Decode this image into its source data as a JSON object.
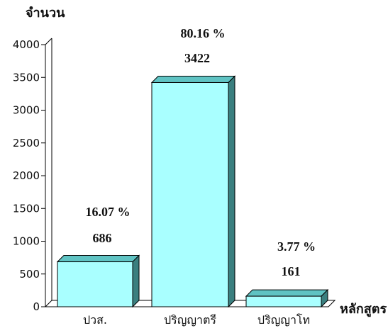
{
  "chart_data": {
    "type": "bar",
    "categories": [
      "ปวส.",
      "ปริญญาตรี",
      "ปริญญาโท"
    ],
    "values": [
      686,
      3422,
      161
    ],
    "value_labels": [
      "686",
      "3422",
      "161"
    ],
    "percent_labels": [
      "16.07 %",
      "80.16 %",
      "3.77 %"
    ],
    "title": "",
    "xlabel": "หลักสูตร",
    "ylabel": "จำนวน",
    "ylim": [
      0,
      4000
    ],
    "yticks": [
      0,
      500,
      1000,
      1500,
      2000,
      2500,
      3000,
      3500,
      4000
    ],
    "ytick_labels": [
      "0",
      "500",
      "1000",
      "1500",
      "2000",
      "2500",
      "3000",
      "3500",
      "4000"
    ],
    "grid": false,
    "legend": "none",
    "style": "3d-bar",
    "colors": {
      "bar_front": "#a9ffff",
      "bar_top": "#5fc3c3",
      "bar_side": "#3a7f7f",
      "outline": "#000000"
    }
  }
}
